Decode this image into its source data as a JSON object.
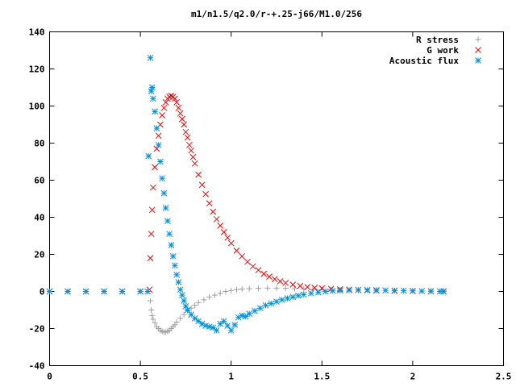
{
  "chart_data": {
    "type": "scatter",
    "title": "m1/n1.5/q2.0/r-+.25-j66/M1.0/256",
    "xlabel": "",
    "ylabel": "",
    "xlim": [
      0,
      2.5
    ],
    "ylim": [
      -40,
      140
    ],
    "x_ticks": [
      0,
      0.5,
      1,
      1.5,
      2,
      2.5
    ],
    "x_tick_labels": [
      "0",
      "0.5",
      "1",
      "1.5",
      "2",
      "2.5"
    ],
    "y_ticks": [
      -40,
      -20,
      0,
      20,
      40,
      60,
      80,
      100,
      120,
      140
    ],
    "y_tick_labels": [
      "-40",
      "-20",
      "0",
      "20",
      "40",
      "60",
      "80",
      "100",
      "120",
      "140"
    ],
    "grid": false,
    "legend_position": "top-right",
    "series": [
      {
        "name": "R stress",
        "marker": "plus",
        "color": "#a0a0a0",
        "points": [
          [
            0.0,
            0
          ],
          [
            0.1,
            0
          ],
          [
            0.2,
            0
          ],
          [
            0.3,
            0
          ],
          [
            0.4,
            0
          ],
          [
            0.5,
            0
          ],
          [
            0.54,
            0
          ],
          [
            0.555,
            -5
          ],
          [
            0.56,
            -10
          ],
          [
            0.565,
            -13
          ],
          [
            0.57,
            -15
          ],
          [
            0.58,
            -17
          ],
          [
            0.59,
            -19
          ],
          [
            0.6,
            -20
          ],
          [
            0.61,
            -21
          ],
          [
            0.62,
            -21.5
          ],
          [
            0.63,
            -22
          ],
          [
            0.64,
            -22
          ],
          [
            0.65,
            -21.5
          ],
          [
            0.66,
            -21
          ],
          [
            0.67,
            -20
          ],
          [
            0.68,
            -19
          ],
          [
            0.69,
            -18
          ],
          [
            0.7,
            -16.5
          ],
          [
            0.72,
            -14.5
          ],
          [
            0.74,
            -12.5
          ],
          [
            0.76,
            -10.5
          ],
          [
            0.78,
            -9
          ],
          [
            0.8,
            -7.5
          ],
          [
            0.82,
            -6
          ],
          [
            0.85,
            -4.5
          ],
          [
            0.88,
            -3
          ],
          [
            0.91,
            -2
          ],
          [
            0.94,
            -1
          ],
          [
            0.97,
            0
          ],
          [
            1.0,
            0.5
          ],
          [
            1.03,
            1
          ],
          [
            1.06,
            1.3
          ],
          [
            1.1,
            1.5
          ],
          [
            1.15,
            1.7
          ],
          [
            1.2,
            1.8
          ],
          [
            1.25,
            1.8
          ],
          [
            1.3,
            1.7
          ],
          [
            1.35,
            1.5
          ],
          [
            1.4,
            1.3
          ],
          [
            1.45,
            1.1
          ],
          [
            1.5,
            1
          ],
          [
            1.55,
            0.9
          ],
          [
            1.6,
            0.8
          ],
          [
            1.7,
            0.7
          ],
          [
            1.8,
            0.6
          ],
          [
            1.9,
            0.5
          ],
          [
            2.0,
            0.4
          ],
          [
            2.1,
            0.3
          ],
          [
            2.17,
            0.3
          ]
        ]
      },
      {
        "name": "G work",
        "marker": "cross",
        "color": "#ff0000",
        "points": [
          [
            0.0,
            0
          ],
          [
            0.1,
            0
          ],
          [
            0.2,
            0
          ],
          [
            0.3,
            0
          ],
          [
            0.4,
            0
          ],
          [
            0.5,
            0
          ],
          [
            0.55,
            1
          ],
          [
            0.555,
            18
          ],
          [
            0.56,
            31
          ],
          [
            0.565,
            44
          ],
          [
            0.57,
            56
          ],
          [
            0.58,
            67
          ],
          [
            0.59,
            77
          ],
          [
            0.6,
            84
          ],
          [
            0.61,
            90
          ],
          [
            0.62,
            95
          ],
          [
            0.63,
            99
          ],
          [
            0.64,
            102
          ],
          [
            0.65,
            104
          ],
          [
            0.66,
            105
          ],
          [
            0.67,
            105.5
          ],
          [
            0.68,
            105
          ],
          [
            0.69,
            104
          ],
          [
            0.7,
            102
          ],
          [
            0.71,
            99
          ],
          [
            0.72,
            96
          ],
          [
            0.73,
            93
          ],
          [
            0.74,
            90
          ],
          [
            0.75,
            86
          ],
          [
            0.76,
            83
          ],
          [
            0.77,
            79
          ],
          [
            0.78,
            76
          ],
          [
            0.79,
            72.5
          ],
          [
            0.8,
            69
          ],
          [
            0.82,
            63
          ],
          [
            0.84,
            57.5
          ],
          [
            0.86,
            52.5
          ],
          [
            0.88,
            47.5
          ],
          [
            0.9,
            43
          ],
          [
            0.92,
            39
          ],
          [
            0.94,
            35.5
          ],
          [
            0.96,
            32
          ],
          [
            0.98,
            29
          ],
          [
            1.0,
            26
          ],
          [
            1.03,
            22
          ],
          [
            1.06,
            19
          ],
          [
            1.09,
            16
          ],
          [
            1.12,
            13.5
          ],
          [
            1.15,
            11.5
          ],
          [
            1.18,
            9.5
          ],
          [
            1.21,
            8
          ],
          [
            1.24,
            6.7
          ],
          [
            1.27,
            5.5
          ],
          [
            1.3,
            4.6
          ],
          [
            1.34,
            3.7
          ],
          [
            1.38,
            3
          ],
          [
            1.42,
            2.4
          ],
          [
            1.46,
            2
          ],
          [
            1.5,
            1.7
          ],
          [
            1.55,
            1.4
          ],
          [
            1.6,
            1.2
          ],
          [
            1.65,
            1
          ],
          [
            1.7,
            0.8
          ],
          [
            1.75,
            0.6
          ],
          [
            1.8,
            0.5
          ],
          [
            1.9,
            0.3
          ],
          [
            2.0,
            0.2
          ],
          [
            2.1,
            0.1
          ],
          [
            2.17,
            0.1
          ]
        ]
      },
      {
        "name": "Acoustic flux",
        "marker": "star",
        "color": "#0090e0",
        "points": [
          [
            0.0,
            0
          ],
          [
            0.1,
            0
          ],
          [
            0.2,
            0
          ],
          [
            0.3,
            0
          ],
          [
            0.4,
            0
          ],
          [
            0.5,
            0
          ],
          [
            0.54,
            0
          ],
          [
            0.545,
            73
          ],
          [
            0.555,
            126
          ],
          [
            0.56,
            108
          ],
          [
            0.565,
            110
          ],
          [
            0.57,
            104
          ],
          [
            0.58,
            97
          ],
          [
            0.59,
            88
          ],
          [
            0.6,
            79
          ],
          [
            0.61,
            70
          ],
          [
            0.62,
            61
          ],
          [
            0.63,
            53
          ],
          [
            0.64,
            45
          ],
          [
            0.65,
            38
          ],
          [
            0.66,
            31
          ],
          [
            0.67,
            25
          ],
          [
            0.68,
            19
          ],
          [
            0.69,
            14
          ],
          [
            0.7,
            9
          ],
          [
            0.71,
            5
          ],
          [
            0.72,
            1
          ],
          [
            0.73,
            -2
          ],
          [
            0.74,
            -5
          ],
          [
            0.75,
            -8
          ],
          [
            0.76,
            -10
          ],
          [
            0.78,
            -12.5
          ],
          [
            0.8,
            -14.5
          ],
          [
            0.82,
            -16
          ],
          [
            0.84,
            -17.5
          ],
          [
            0.86,
            -18.5
          ],
          [
            0.88,
            -19
          ],
          [
            0.9,
            -19.5
          ],
          [
            0.92,
            -21
          ],
          [
            0.94,
            -17.5
          ],
          [
            0.96,
            -16
          ],
          [
            0.98,
            -18.5
          ],
          [
            1.0,
            -21
          ],
          [
            1.02,
            -18
          ],
          [
            1.04,
            -14
          ],
          [
            1.06,
            -13
          ],
          [
            1.08,
            -13.5
          ],
          [
            1.1,
            -12
          ],
          [
            1.13,
            -10.5
          ],
          [
            1.16,
            -9
          ],
          [
            1.19,
            -7.5
          ],
          [
            1.22,
            -6.5
          ],
          [
            1.25,
            -5.5
          ],
          [
            1.28,
            -4.5
          ],
          [
            1.31,
            -3.7
          ],
          [
            1.34,
            -3
          ],
          [
            1.37,
            -2.3
          ],
          [
            1.4,
            -1.7
          ],
          [
            1.44,
            -1
          ],
          [
            1.48,
            -0.5
          ],
          [
            1.52,
            0
          ],
          [
            1.56,
            0.3
          ],
          [
            1.6,
            0.5
          ],
          [
            1.65,
            0.7
          ],
          [
            1.7,
            0.8
          ],
          [
            1.75,
            0.8
          ],
          [
            1.8,
            0.7
          ],
          [
            1.85,
            0.6
          ],
          [
            1.9,
            0.5
          ],
          [
            1.95,
            0.4
          ],
          [
            2.0,
            0.3
          ],
          [
            2.05,
            0.2
          ],
          [
            2.1,
            0.1
          ],
          [
            2.15,
            0
          ],
          [
            2.17,
            0
          ]
        ]
      }
    ]
  }
}
